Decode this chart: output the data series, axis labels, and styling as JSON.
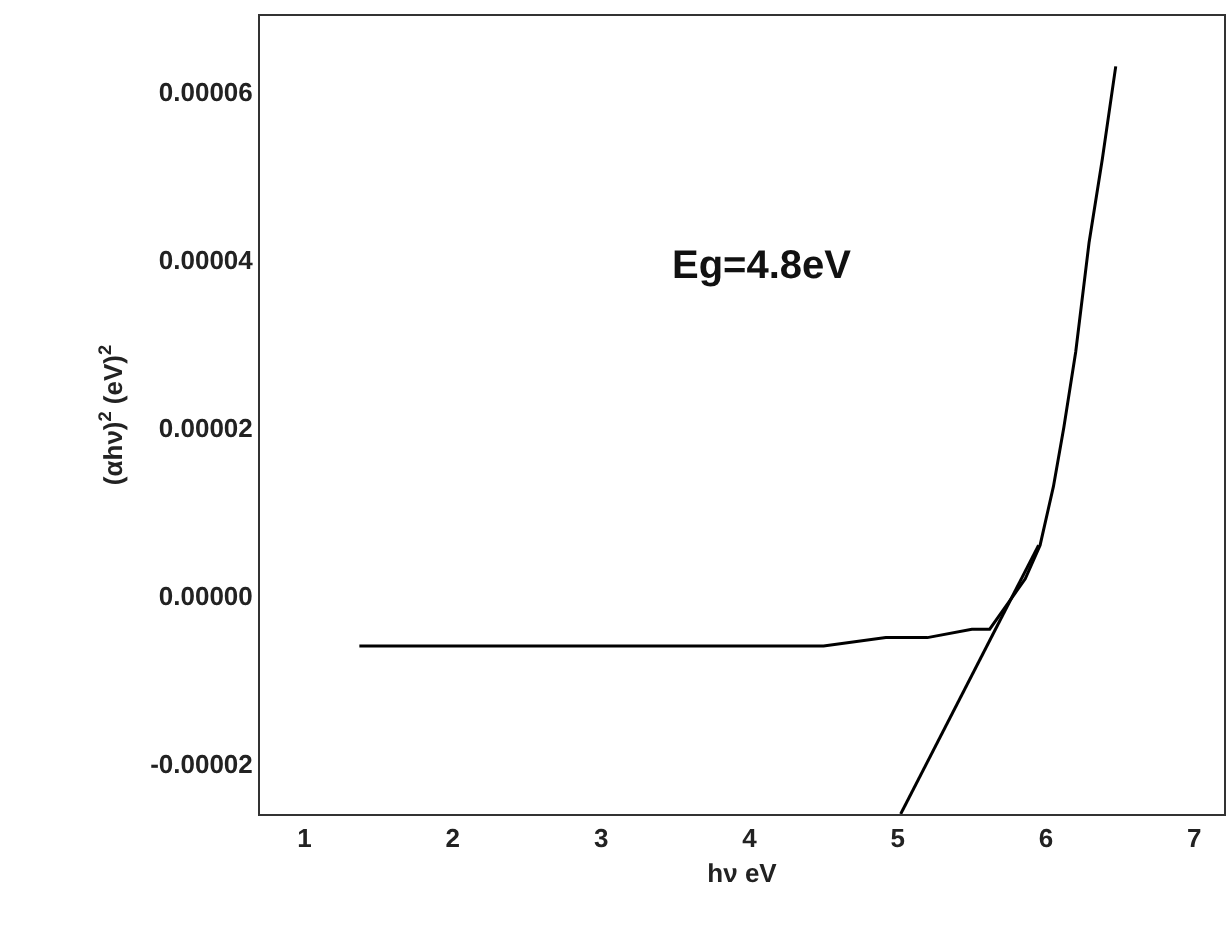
{
  "chart_data": {
    "type": "line",
    "xlabel": "hν eV",
    "ylabel": "(αhν)$^{2}$ (eV)$^{2}$",
    "annotations": [
      "Eg=4.8eV"
    ],
    "series": [
      {
        "color": "#000000",
        "x": [
          1.37,
          2.0,
          3.0,
          4.0,
          4.5,
          4.92,
          5.2,
          5.5,
          5.62,
          5.7,
          5.78,
          5.86,
          5.96,
          6.05,
          6.12,
          6.2,
          6.29,
          6.38,
          6.47
        ],
        "values": [
          -6e-06,
          -6e-06,
          -6e-06,
          -6e-06,
          -6e-06,
          -5e-06,
          -5e-06,
          -4e-06,
          -4e-06,
          -2e-06,
          0.0,
          2e-06,
          6e-06,
          1.3e-05,
          2e-05,
          2.9e-05,
          4.2e-05,
          5.2e-05,
          6.3e-05
        ]
      },
      {
        "color": "#000000",
        "type": "line",
        "x": [
          5.02,
          5.95
        ],
        "values": [
          -2.6e-05,
          6e-06
        ]
      }
    ],
    "xlim": [
      0.7,
      7.2
    ],
    "ylim": [
      -2.6e-05,
      6.9e-05
    ],
    "xticks": [
      1,
      2,
      3,
      4,
      5,
      6,
      7
    ],
    "yticks": [
      {
        "value": -2e-05,
        "label": "-0.00002"
      },
      {
        "value": 0,
        "label": "0.00000"
      },
      {
        "value": 2e-05,
        "label": "0.00002"
      },
      {
        "value": 4e-05,
        "label": "0.00004"
      },
      {
        "value": 6e-05,
        "label": "0.00006"
      }
    ],
    "marker": "none",
    "line_style": "solid"
  }
}
